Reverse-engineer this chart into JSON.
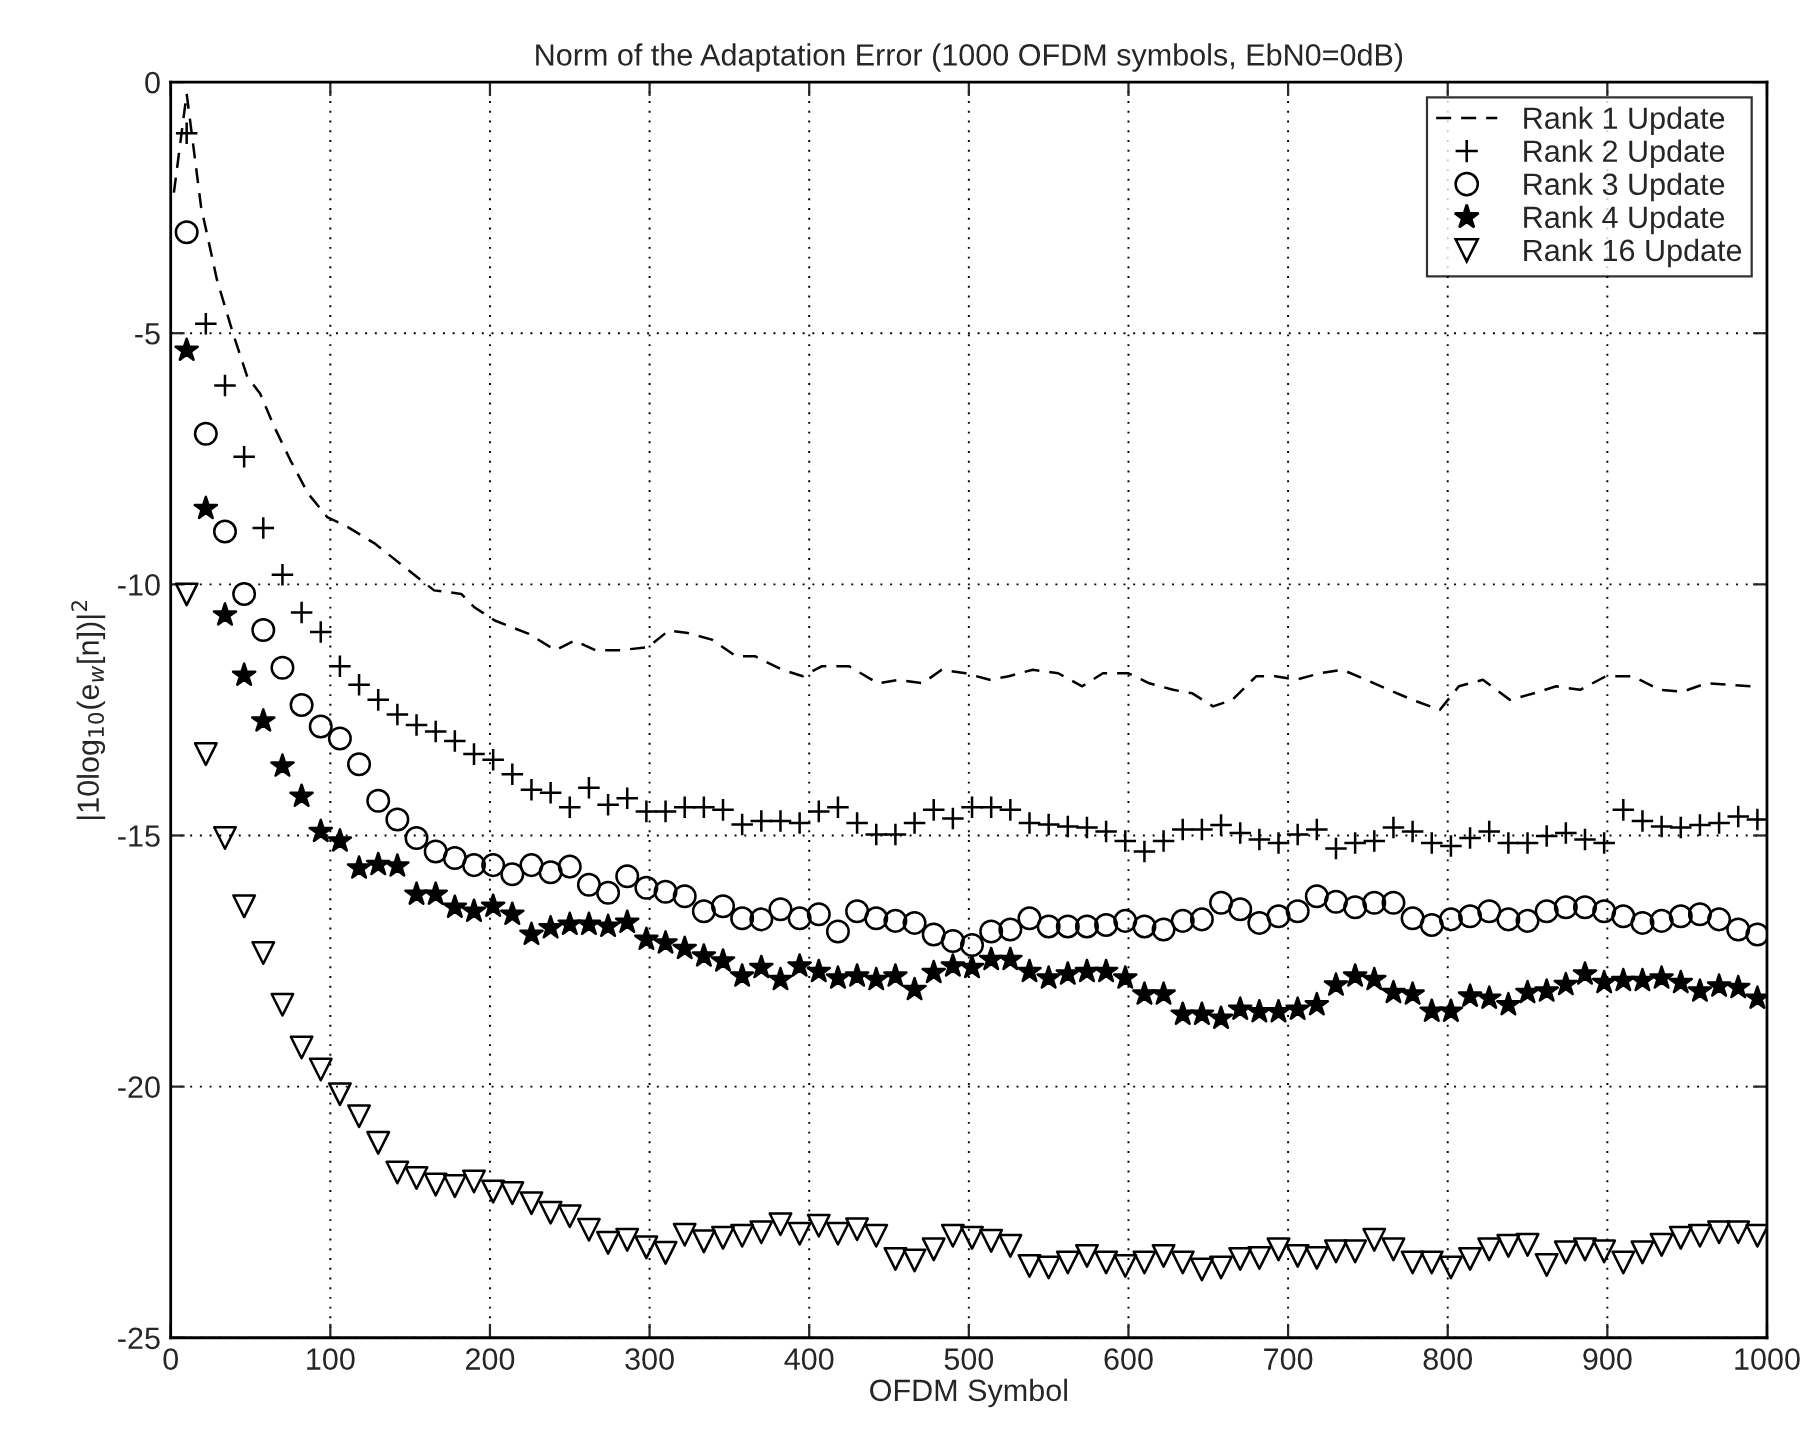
{
  "chart_data": {
    "type": "line",
    "title": "Norm of the Adaptation Error (1000 OFDM symbols, EbN0=0dB)",
    "xlabel": "OFDM Symbol",
    "ylabel": "|10log$_{10}$(e$_{w}$[n])|$^{2}$",
    "xlim": [
      0,
      1000
    ],
    "ylim": [
      -25,
      0
    ],
    "xticks": [
      0,
      100,
      200,
      300,
      400,
      500,
      600,
      700,
      800,
      900,
      1000
    ],
    "yticks": [
      -25,
      -20,
      -15,
      -10,
      -5,
      0
    ],
    "grid": true,
    "legend": "top right",
    "x": [
      10,
      22,
      34,
      46,
      58,
      70,
      82,
      94,
      106,
      118,
      130,
      142,
      154,
      166,
      178,
      190,
      202,
      214,
      226,
      238,
      250,
      262,
      274,
      286,
      298,
      310,
      322,
      334,
      346,
      358,
      370,
      382,
      394,
      406,
      418,
      430,
      442,
      454,
      466,
      478,
      490,
      502,
      514,
      526,
      538,
      550,
      562,
      574,
      586,
      598,
      610,
      622,
      634,
      646,
      658,
      670,
      682,
      694,
      706,
      718,
      730,
      742,
      754,
      766,
      778,
      790,
      802,
      814,
      826,
      838,
      850,
      862,
      874,
      886,
      898,
      910,
      922,
      934,
      946,
      958,
      970,
      982,
      994
    ],
    "series": [
      {
        "name": "Rank 1 Update",
        "type": "line",
        "color": "#000000",
        "line_style": "dashed",
        "marker": "none",
        "x": [
          2,
          10,
          19,
          29,
          39,
          48,
          56,
          65,
          75,
          86,
          98,
          111,
          128,
          149,
          165,
          182,
          190,
          203,
          224,
          241,
          253,
          266,
          282,
          299,
          312,
          324,
          339,
          354,
          366,
          383,
          396,
          408,
          425,
          443,
          456,
          471,
          483,
          498,
          513,
          525,
          540,
          556,
          571,
          584,
          600,
          613,
          628,
          640,
          653,
          665,
          680,
          692,
          705,
          720,
          734,
          749,
          763,
          778,
          795,
          807,
          822,
          839,
          855,
          868,
          883,
          899,
          916,
          933,
          947,
          962,
          977,
          991,
          995
        ],
        "values": [
          -2.2,
          -0.23,
          -2.48,
          -3.94,
          -5.0,
          -5.87,
          -6.2,
          -6.87,
          -7.53,
          -8.19,
          -8.66,
          -8.86,
          -9.19,
          -9.72,
          -10.12,
          -10.19,
          -10.45,
          -10.72,
          -10.98,
          -11.31,
          -11.12,
          -11.31,
          -11.31,
          -11.25,
          -10.92,
          -10.97,
          -11.1,
          -11.43,
          -11.43,
          -11.7,
          -11.83,
          -11.63,
          -11.63,
          -11.97,
          -11.9,
          -11.97,
          -11.7,
          -11.77,
          -11.9,
          -11.83,
          -11.7,
          -11.77,
          -12.03,
          -11.77,
          -11.77,
          -11.97,
          -12.1,
          -12.17,
          -12.43,
          -12.3,
          -11.83,
          -11.83,
          -11.9,
          -11.77,
          -11.7,
          -11.9,
          -12.1,
          -12.3,
          -12.5,
          -12.03,
          -11.9,
          -12.3,
          -12.16,
          -12.03,
          -12.1,
          -11.83,
          -11.83,
          -12.1,
          -12.14,
          -11.97,
          -12.0,
          -12.03,
          -11.97
        ]
      },
      {
        "name": "Rank 2 Update",
        "type": "scatter",
        "color": "#000000",
        "marker": "cross",
        "values": [
          -1.02,
          -4.81,
          -6.04,
          -7.46,
          -8.88,
          -9.81,
          -10.56,
          -10.95,
          -11.63,
          -12.0,
          -12.3,
          -12.59,
          -12.8,
          -12.93,
          -13.12,
          -13.38,
          -13.49,
          -13.78,
          -14.09,
          -14.15,
          -14.44,
          -14.05,
          -14.39,
          -14.26,
          -14.52,
          -14.52,
          -14.44,
          -14.44,
          -14.49,
          -14.78,
          -14.71,
          -14.71,
          -14.75,
          -14.52,
          -14.44,
          -14.75,
          -14.98,
          -14.98,
          -14.75,
          -14.49,
          -14.66,
          -14.44,
          -14.44,
          -14.49,
          -14.75,
          -14.78,
          -14.82,
          -14.84,
          -14.92,
          -15.11,
          -15.32,
          -15.11,
          -14.88,
          -14.88,
          -14.79,
          -14.95,
          -15.08,
          -15.15,
          -14.98,
          -14.88,
          -15.26,
          -15.15,
          -15.11,
          -14.84,
          -14.92,
          -15.15,
          -15.21,
          -15.05,
          -14.92,
          -15.15,
          -15.15,
          -15.01,
          -14.95,
          -15.08,
          -15.15,
          -14.49,
          -14.71,
          -14.82,
          -14.84,
          -14.79,
          -14.75,
          -14.62,
          -14.68
        ]
      },
      {
        "name": "Rank 3 Update",
        "type": "scatter",
        "color": "#000000",
        "marker": "circle",
        "values": [
          -2.99,
          -7.0,
          -8.95,
          -10.19,
          -10.91,
          -11.66,
          -12.4,
          -12.83,
          -13.07,
          -13.58,
          -14.31,
          -14.68,
          -15.05,
          -15.32,
          -15.45,
          -15.59,
          -15.59,
          -15.77,
          -15.59,
          -15.73,
          -15.62,
          -15.98,
          -16.14,
          -15.81,
          -16.04,
          -16.12,
          -16.21,
          -16.51,
          -16.41,
          -16.65,
          -16.67,
          -16.47,
          -16.65,
          -16.57,
          -16.91,
          -16.51,
          -16.65,
          -16.7,
          -16.74,
          -16.97,
          -17.1,
          -17.18,
          -16.91,
          -16.87,
          -16.65,
          -16.81,
          -16.81,
          -16.81,
          -16.78,
          -16.7,
          -16.81,
          -16.87,
          -16.7,
          -16.67,
          -16.34,
          -16.47,
          -16.74,
          -16.61,
          -16.51,
          -16.21,
          -16.32,
          -16.43,
          -16.34,
          -16.34,
          -16.65,
          -16.78,
          -16.67,
          -16.61,
          -16.51,
          -16.67,
          -16.7,
          -16.51,
          -16.43,
          -16.43,
          -16.51,
          -16.61,
          -16.74,
          -16.7,
          -16.61,
          -16.57,
          -16.67,
          -16.87,
          -16.97
        ]
      },
      {
        "name": "Rank 4 Update",
        "type": "scatter",
        "color": "#000000",
        "marker": "star",
        "values": [
          -5.34,
          -8.49,
          -10.61,
          -11.81,
          -12.72,
          -13.62,
          -14.22,
          -14.92,
          -15.11,
          -15.65,
          -15.58,
          -15.61,
          -16.17,
          -16.17,
          -16.43,
          -16.51,
          -16.41,
          -16.57,
          -16.97,
          -16.84,
          -16.77,
          -16.77,
          -16.81,
          -16.73,
          -17.07,
          -17.14,
          -17.25,
          -17.4,
          -17.5,
          -17.8,
          -17.63,
          -17.87,
          -17.6,
          -17.71,
          -17.84,
          -17.8,
          -17.87,
          -17.8,
          -18.07,
          -17.73,
          -17.6,
          -17.63,
          -17.47,
          -17.47,
          -17.71,
          -17.84,
          -17.76,
          -17.71,
          -17.71,
          -17.84,
          -18.16,
          -18.16,
          -18.56,
          -18.56,
          -18.64,
          -18.46,
          -18.51,
          -18.51,
          -18.46,
          -18.37,
          -17.98,
          -17.8,
          -17.87,
          -18.13,
          -18.16,
          -18.5,
          -18.5,
          -18.2,
          -18.24,
          -18.37,
          -18.13,
          -18.1,
          -17.97,
          -17.76,
          -17.93,
          -17.89,
          -17.89,
          -17.84,
          -17.93,
          -18.1,
          -18.0,
          -18.03,
          -18.24
        ]
      },
      {
        "name": "Rank 16 Update",
        "type": "scatter",
        "color": "#000000",
        "marker": "triangle",
        "values": [
          -10.2,
          -13.38,
          -15.05,
          -16.41,
          -17.34,
          -18.37,
          -19.22,
          -19.66,
          -20.15,
          -20.59,
          -21.12,
          -21.71,
          -21.82,
          -21.95,
          -21.98,
          -21.89,
          -22.09,
          -22.12,
          -22.32,
          -22.51,
          -22.58,
          -22.85,
          -23.11,
          -23.05,
          -23.2,
          -23.31,
          -22.95,
          -23.08,
          -23.01,
          -22.97,
          -22.9,
          -22.74,
          -22.93,
          -22.77,
          -22.93,
          -22.84,
          -22.97,
          -23.43,
          -23.46,
          -23.24,
          -22.97,
          -23.01,
          -23.07,
          -23.17,
          -23.57,
          -23.6,
          -23.5,
          -23.37,
          -23.5,
          -23.57,
          -23.5,
          -23.37,
          -23.5,
          -23.64,
          -23.6,
          -23.43,
          -23.41,
          -23.24,
          -23.37,
          -23.41,
          -23.28,
          -23.28,
          -23.05,
          -23.24,
          -23.5,
          -23.5,
          -23.6,
          -23.43,
          -23.24,
          -23.17,
          -23.15,
          -23.55,
          -23.3,
          -23.24,
          -23.28,
          -23.5,
          -23.3,
          -23.15,
          -23.01,
          -22.97,
          -22.9,
          -22.9,
          -22.97
        ]
      }
    ]
  }
}
